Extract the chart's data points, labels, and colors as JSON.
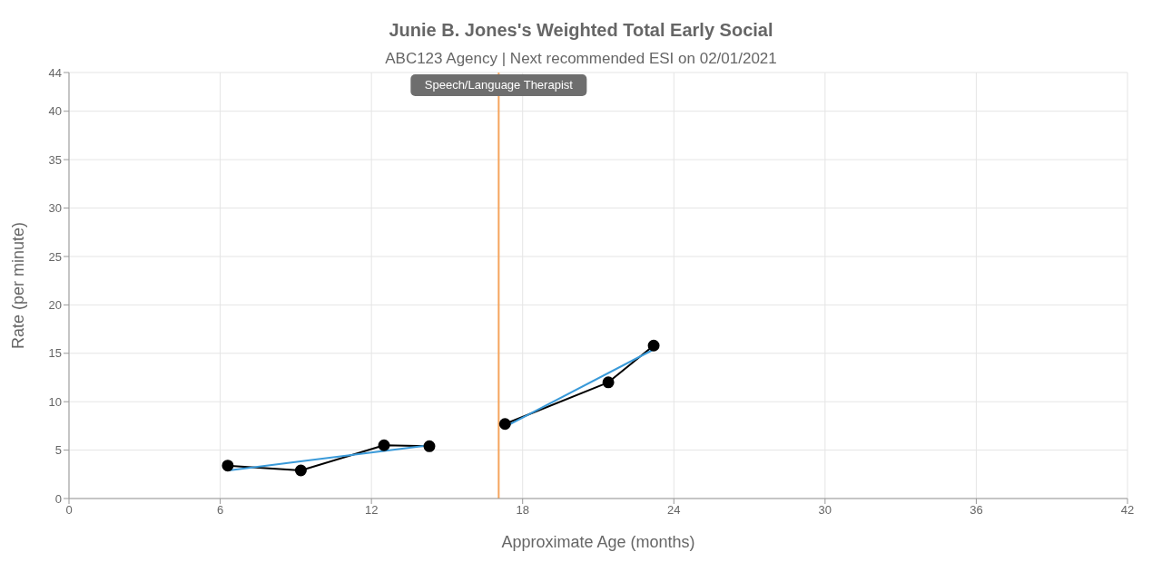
{
  "chart_data": {
    "type": "line",
    "title": "Junie B. Jones's Weighted Total Early Social",
    "subtitle": "ABC123 Agency | Next recommended ESI on 02/01/2021",
    "xlabel": "Approximate Age (months)",
    "ylabel": "Rate (per minute)",
    "series": [
      {
        "color": "#000000",
        "x": [
          6.3,
          9.2,
          12.5,
          14.3
        ],
        "values": [
          3.4,
          2.9,
          5.5,
          5.4
        ]
      },
      {
        "color": "#000000",
        "x": [
          17.3,
          21.4,
          23.2
        ],
        "values": [
          7.7,
          12.0,
          15.8
        ]
      },
      {
        "color": "#3a9ad9",
        "marker": "none",
        "x": [
          6.3,
          14.3
        ],
        "values": [
          2.9,
          5.5
        ]
      },
      {
        "color": "#3a9ad9",
        "marker": "none",
        "x": [
          17.3,
          23.2
        ],
        "values": [
          7.4,
          15.4
        ]
      }
    ],
    "xlim": [
      0,
      42
    ],
    "xticks": [
      0,
      6,
      12,
      18,
      24,
      30,
      36,
      42
    ],
    "ylim": [
      0,
      44
    ],
    "yticks": [
      0,
      5,
      10,
      15,
      20,
      25,
      30,
      35,
      40,
      44
    ],
    "ref_lines": [
      {
        "axis": "x",
        "value": 17.05,
        "label": "Speech/Language Therapist",
        "color": "#f5a45d"
      }
    ],
    "grid": true,
    "marker": "circle",
    "line_style": "solid"
  }
}
